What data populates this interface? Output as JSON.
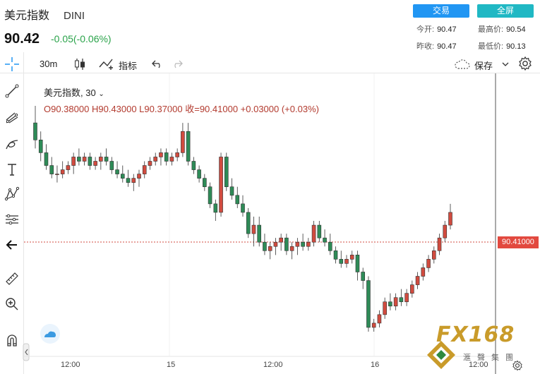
{
  "header": {
    "name": "美元指数",
    "code": "DINI",
    "price": "90.42",
    "change": "-0.05(-0.06%)",
    "trade_button": "交易",
    "fullscreen_button": "全屏",
    "stats": {
      "open_label": "今开:",
      "open_value": "90.47",
      "high_label": "最高价:",
      "high_value": "90.54",
      "prevclose_label": "昨收:",
      "prevclose_value": "90.47",
      "low_label": "最低价:",
      "low_value": "90.13"
    }
  },
  "toolbar": {
    "interval": "30m",
    "indicators_label": "指标",
    "save_label": "保存",
    "icons": [
      "crosshair-icon",
      "candles-icon",
      "indicators-icon",
      "undo-icon",
      "redo-icon",
      "cloud-icon",
      "chevron-down-icon",
      "settings-gear-icon"
    ]
  },
  "left_tools": [
    "crosshair-icon",
    "trend-line-icon",
    "fib-tool-icon",
    "brush-icon",
    "text-icon",
    "pattern-icon",
    "measure-icon",
    "back-arrow-icon",
    "ruler-icon",
    "zoom-in-icon",
    "magnet-icon"
  ],
  "legend": {
    "title": "美元指数, 30",
    "ohlc": "O90.38000  H90.43000  L90.37000  收=90.41000  +0.03000 (+0.03%)"
  },
  "price_line_label": "90.41000",
  "x_axis_labels": [
    "12:00",
    "15",
    "12:00",
    "16",
    "12:00"
  ],
  "watermark": {
    "logo": "FX168",
    "subtitle": "滙聲集團"
  },
  "colors": {
    "up": "#d14b3f",
    "down": "#2e8b57",
    "price_line": "#d14b3f",
    "trade": "#2196f3",
    "fullscreen": "#20b8c4"
  },
  "chart_data": {
    "type": "candlestick",
    "interval": "30m",
    "x_ticks": [
      "12:00",
      "15",
      "12:00",
      "16",
      "12:00"
    ],
    "last_price": 90.41,
    "candles": [
      [
        90.62,
        90.66,
        90.56,
        90.58
      ],
      [
        90.58,
        90.6,
        90.53,
        90.55
      ],
      [
        90.55,
        90.57,
        90.51,
        90.52
      ],
      [
        90.52,
        90.54,
        90.49,
        90.5
      ],
      [
        90.5,
        90.52,
        90.48,
        90.5
      ],
      [
        90.5,
        90.53,
        90.49,
        90.51
      ],
      [
        90.51,
        90.53,
        90.5,
        90.52
      ],
      [
        90.52,
        90.55,
        90.5,
        90.54
      ],
      [
        90.54,
        90.56,
        90.52,
        90.53
      ],
      [
        90.53,
        90.55,
        90.52,
        90.54
      ],
      [
        90.54,
        90.55,
        90.51,
        90.52
      ],
      [
        90.52,
        90.54,
        90.51,
        90.53
      ],
      [
        90.53,
        90.55,
        90.51,
        90.54
      ],
      [
        90.54,
        90.56,
        90.52,
        90.53
      ],
      [
        90.53,
        90.54,
        90.5,
        90.51
      ],
      [
        90.51,
        90.53,
        90.49,
        90.5
      ],
      [
        90.5,
        90.52,
        90.48,
        90.49
      ],
      [
        90.49,
        90.51,
        90.47,
        90.48
      ],
      [
        90.48,
        90.5,
        90.46,
        90.49
      ],
      [
        90.49,
        90.51,
        90.47,
        90.5
      ],
      [
        90.5,
        90.53,
        90.49,
        90.52
      ],
      [
        90.52,
        90.54,
        90.51,
        90.53
      ],
      [
        90.53,
        90.55,
        90.52,
        90.54
      ],
      [
        90.54,
        90.56,
        90.52,
        90.55
      ],
      [
        90.55,
        90.56,
        90.52,
        90.53
      ],
      [
        90.53,
        90.55,
        90.52,
        90.54
      ],
      [
        90.54,
        90.56,
        90.53,
        90.55
      ],
      [
        90.55,
        90.62,
        90.54,
        90.6
      ],
      [
        90.6,
        90.62,
        90.52,
        90.53
      ],
      [
        90.53,
        90.54,
        90.5,
        90.51
      ],
      [
        90.51,
        90.52,
        90.48,
        90.49
      ],
      [
        90.49,
        90.5,
        90.46,
        90.47
      ],
      [
        90.47,
        90.48,
        90.42,
        90.43
      ],
      [
        90.43,
        90.44,
        90.39,
        90.41
      ],
      [
        90.41,
        90.55,
        90.4,
        90.54
      ],
      [
        90.54,
        90.55,
        90.46,
        90.47
      ],
      [
        90.47,
        90.49,
        90.44,
        90.45
      ],
      [
        90.45,
        90.47,
        90.42,
        90.43
      ],
      [
        90.43,
        90.45,
        90.4,
        90.41
      ],
      [
        90.41,
        90.42,
        90.35,
        90.36
      ],
      [
        90.36,
        90.4,
        90.33,
        90.38
      ],
      [
        90.38,
        90.4,
        90.33,
        90.34
      ],
      [
        90.34,
        90.36,
        90.31,
        90.32
      ],
      [
        90.32,
        90.34,
        90.3,
        90.33
      ],
      [
        90.33,
        90.35,
        90.31,
        90.34
      ],
      [
        90.34,
        90.36,
        90.32,
        90.35
      ],
      [
        90.35,
        90.36,
        90.31,
        90.32
      ],
      [
        90.32,
        90.34,
        90.3,
        90.33
      ],
      [
        90.33,
        90.35,
        90.31,
        90.34
      ],
      [
        90.34,
        90.36,
        90.32,
        90.33
      ],
      [
        90.33,
        90.35,
        90.32,
        90.34
      ],
      [
        90.34,
        90.39,
        90.33,
        90.38
      ],
      [
        90.38,
        90.39,
        90.34,
        90.35
      ],
      [
        90.35,
        90.37,
        90.33,
        90.34
      ],
      [
        90.34,
        90.36,
        90.31,
        90.32
      ],
      [
        90.32,
        90.33,
        90.29,
        90.3
      ],
      [
        90.3,
        90.32,
        90.28,
        90.29
      ],
      [
        90.29,
        90.31,
        90.28,
        90.3
      ],
      [
        90.3,
        90.32,
        90.29,
        90.31
      ],
      [
        90.31,
        90.32,
        90.25,
        90.27
      ],
      [
        90.27,
        90.28,
        90.23,
        90.25
      ],
      [
        90.25,
        90.26,
        90.13,
        90.14
      ],
      [
        90.14,
        90.16,
        90.13,
        90.15
      ],
      [
        90.15,
        90.18,
        90.14,
        90.17
      ],
      [
        90.17,
        90.21,
        90.16,
        90.2
      ],
      [
        90.2,
        90.22,
        90.18,
        90.19
      ],
      [
        90.19,
        90.22,
        90.18,
        90.21
      ],
      [
        90.21,
        90.23,
        90.19,
        90.2
      ],
      [
        90.2,
        90.23,
        90.19,
        90.22
      ],
      [
        90.22,
        90.25,
        90.21,
        90.24
      ],
      [
        90.24,
        90.27,
        90.23,
        90.26
      ],
      [
        90.26,
        90.29,
        90.25,
        90.28
      ],
      [
        90.28,
        90.31,
        90.27,
        90.3
      ],
      [
        90.3,
        90.33,
        90.29,
        90.32
      ],
      [
        90.32,
        90.36,
        90.31,
        90.35
      ],
      [
        90.35,
        90.39,
        90.34,
        90.38
      ],
      [
        90.38,
        90.43,
        90.37,
        90.41
      ]
    ]
  }
}
